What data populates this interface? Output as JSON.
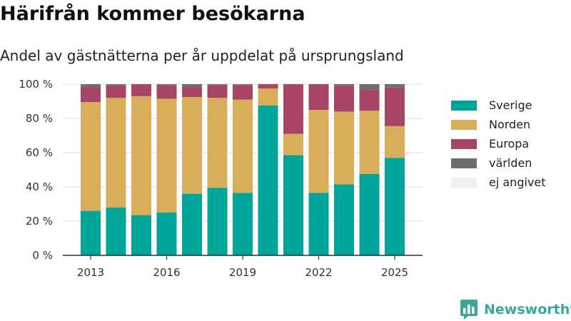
{
  "header": {
    "title": "Härifrån kommer besökarna",
    "subtitle": "Andel av gästnätterna per år uppdelat på ursprungsland"
  },
  "brand": {
    "name": "Newsworthy",
    "icon": "bar-chart-logo-icon",
    "color": "#3aa898"
  },
  "chart_data": {
    "type": "bar",
    "stacked": true,
    "title": "Härifrån kommer besökarna",
    "subtitle": "Andel av gästnätterna per år uppdelat på ursprungsland",
    "xlabel": "",
    "ylabel": "",
    "categories": [
      "2013",
      "2014",
      "2015",
      "2016",
      "2017",
      "2018",
      "2019",
      "2020",
      "2021",
      "2022",
      "2023",
      "2024",
      "2025"
    ],
    "x_tick_labels": [
      "2013",
      "2016",
      "2019",
      "2022",
      "2025"
    ],
    "y_ticks": [
      "0 %",
      "20 %",
      "40 %",
      "60 %",
      "80 %",
      "100 %"
    ],
    "ylim": [
      0,
      100
    ],
    "grid": true,
    "legend_position": "right",
    "series": [
      {
        "name": "Sverige",
        "color": "#00a59a",
        "values": [
          26,
          28,
          23.5,
          25,
          36,
          39.5,
          36.5,
          87.5,
          58.5,
          36.5,
          41.5,
          47.5,
          57
        ]
      },
      {
        "name": "Norden",
        "color": "#d9ae5a",
        "values": [
          63.5,
          64,
          69.5,
          66.5,
          56.5,
          52.5,
          54.5,
          10,
          12.5,
          48.5,
          42.5,
          37,
          18.5
        ]
      },
      {
        "name": "Europa",
        "color": "#a84467",
        "values": [
          9,
          7.5,
          7,
          8,
          6,
          7.5,
          8.5,
          2.5,
          29,
          15,
          15,
          12.5,
          22.5
        ]
      },
      {
        "name": "världen",
        "color": "#6d6e72",
        "values": [
          1.5,
          0.5,
          0,
          0.5,
          1.5,
          0.5,
          0.5,
          0,
          0,
          0,
          1,
          3,
          2
        ]
      },
      {
        "name": "ej angivet",
        "color": "#f0f0f2",
        "values": [
          0,
          0,
          0,
          0,
          0,
          0,
          0,
          0,
          0,
          0,
          0,
          0,
          0
        ]
      }
    ]
  }
}
